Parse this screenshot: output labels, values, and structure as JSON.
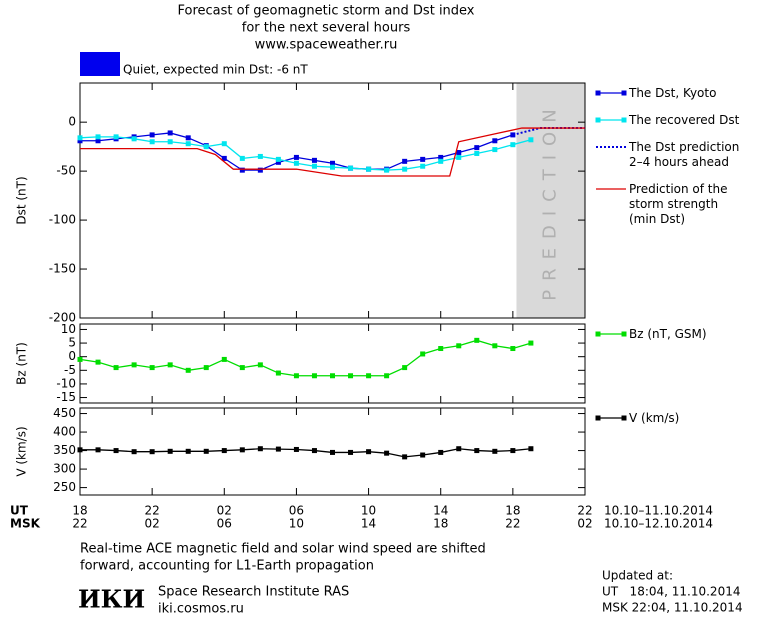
{
  "header": {
    "title": "Forecast of geomagnetic storm and Dst index",
    "subtitle": "for the next several hours",
    "url": "www.spaceweather.ru"
  },
  "status": {
    "text": "Quiet, expected min Dst: -6 nT",
    "color": "#0000ee"
  },
  "chart_data": [
    {
      "type": "line",
      "y_label": "Dst (nT)",
      "xlim": [
        0,
        28
      ],
      "ylim": [
        -200,
        40
      ],
      "yticks": [
        -200,
        -150,
        -100,
        -50,
        0
      ],
      "prediction_band": {
        "xlim": [
          24.2,
          28
        ],
        "label": "PREDICTION",
        "color": "#d9d9d9"
      },
      "series": [
        {
          "name": "The Dst, Kyoto",
          "color": "#0000dd",
          "marker": true,
          "dashed": false,
          "x": [
            0,
            1,
            2,
            3,
            4,
            5,
            6,
            7,
            8,
            9,
            10,
            11,
            12,
            13,
            14,
            15,
            16,
            17,
            18,
            19,
            20,
            21,
            22,
            23,
            24
          ],
          "values": [
            -19,
            -19,
            -17,
            -15,
            -13,
            -11,
            -16,
            -24,
            -37,
            -49,
            -49,
            -41,
            -36,
            -39,
            -42,
            -47,
            -48,
            -48,
            -40,
            -38,
            -36,
            -31,
            -26,
            -19,
            -13
          ]
        },
        {
          "name": "The recovered Dst",
          "color": "#00e5ee",
          "marker": true,
          "dashed": false,
          "x": [
            0,
            1,
            2,
            3,
            4,
            5,
            6,
            7,
            8,
            9,
            10,
            11,
            12,
            13,
            14,
            15,
            16,
            17,
            18,
            19,
            20,
            21,
            22,
            23,
            24,
            25
          ],
          "values": [
            -16,
            -15,
            -15,
            -17,
            -20,
            -20,
            -22,
            -25,
            -22,
            -37,
            -35,
            -38,
            -42,
            -45,
            -46,
            -47,
            -48,
            -49,
            -48,
            -45,
            -40,
            -36,
            -32,
            -28,
            -23,
            -18
          ]
        },
        {
          "name": "The Dst prediction\n2–4 hours ahead",
          "color": "#0000dd",
          "marker": false,
          "dashed": true,
          "x": [
            24,
            25.5,
            28
          ],
          "values": [
            -13,
            -6,
            -6
          ]
        },
        {
          "name": "Prediction of the\nstorm strength\n(min Dst)",
          "color": "#dd0000",
          "marker": false,
          "dashed": false,
          "x": [
            0,
            6.5,
            7.5,
            8.5,
            12,
            14.5,
            20.5,
            21,
            23,
            24.5,
            28
          ],
          "values": [
            -27,
            -27,
            -33,
            -48,
            -48,
            -55,
            -55,
            -20,
            -12,
            -6,
            -6
          ]
        }
      ]
    },
    {
      "type": "line",
      "y_label": "Bz (nT)",
      "xlim": [
        0,
        28
      ],
      "ylim": [
        -17,
        12
      ],
      "yticks": [
        -15,
        -10,
        -5,
        0,
        5,
        10
      ],
      "series": [
        {
          "name": "Bz (nT, GSM)",
          "color": "#00dd00",
          "marker": true,
          "dashed": false,
          "x": [
            0,
            1,
            2,
            3,
            4,
            5,
            6,
            7,
            8,
            9,
            10,
            11,
            12,
            13,
            14,
            15,
            16,
            17,
            18,
            19,
            20,
            21,
            22,
            23,
            24,
            25
          ],
          "values": [
            -1,
            -2,
            -4,
            -3,
            -4,
            -3,
            -5,
            -4,
            -1,
            -4,
            -3,
            -6,
            -7,
            -7,
            -7,
            -7,
            -7,
            -7,
            -4,
            1,
            3,
            4,
            6,
            4,
            3,
            5
          ]
        }
      ]
    },
    {
      "type": "line",
      "y_label": "V (km/s)",
      "xlim": [
        0,
        28
      ],
      "ylim": [
        230,
        465
      ],
      "yticks": [
        250,
        300,
        350,
        400,
        450
      ],
      "xticks": [
        {
          "value": 0,
          "label": "18"
        },
        {
          "value": 4,
          "label": "22"
        },
        {
          "value": 8,
          "label": "02"
        },
        {
          "value": 12,
          "label": "06"
        },
        {
          "value": 16,
          "label": "10"
        },
        {
          "value": 20,
          "label": "14"
        },
        {
          "value": 24,
          "label": "18"
        },
        {
          "value": 28,
          "label": "22"
        }
      ],
      "msk_tick_labels": [
        "22",
        "02",
        "06",
        "10",
        "14",
        "18",
        "22",
        "02"
      ],
      "series": [
        {
          "name": "V (km/s)",
          "color": "#000000",
          "marker": true,
          "dashed": false,
          "x": [
            0,
            1,
            2,
            3,
            4,
            5,
            6,
            7,
            8,
            9,
            10,
            11,
            12,
            13,
            14,
            15,
            16,
            17,
            18,
            19,
            20,
            21,
            22,
            23,
            24,
            25
          ],
          "values": [
            352,
            352,
            350,
            347,
            347,
            348,
            348,
            348,
            350,
            352,
            355,
            354,
            353,
            350,
            345,
            345,
            347,
            343,
            333,
            338,
            345,
            355,
            350,
            348,
            350,
            355
          ]
        }
      ]
    }
  ],
  "time_axis": {
    "ut_label": "UT",
    "msk_label": "MSK",
    "ut_range": "10.10–11.10.2014",
    "msk_range": "10.10–12.10.2014"
  },
  "note": [
    "Real-time ACE magnetic field and solar wind speed are shifted",
    "forward, accounting for L1-Earth propagation"
  ],
  "footer": {
    "logo": "ИКИ",
    "institute": "Space Research Institute RAS",
    "site": "iki.cosmos.ru",
    "updated_label": "Updated at:",
    "updated_ut": "UT   18:04, 11.10.2014",
    "updated_msk": "MSK 22:04, 11.10.2014"
  }
}
